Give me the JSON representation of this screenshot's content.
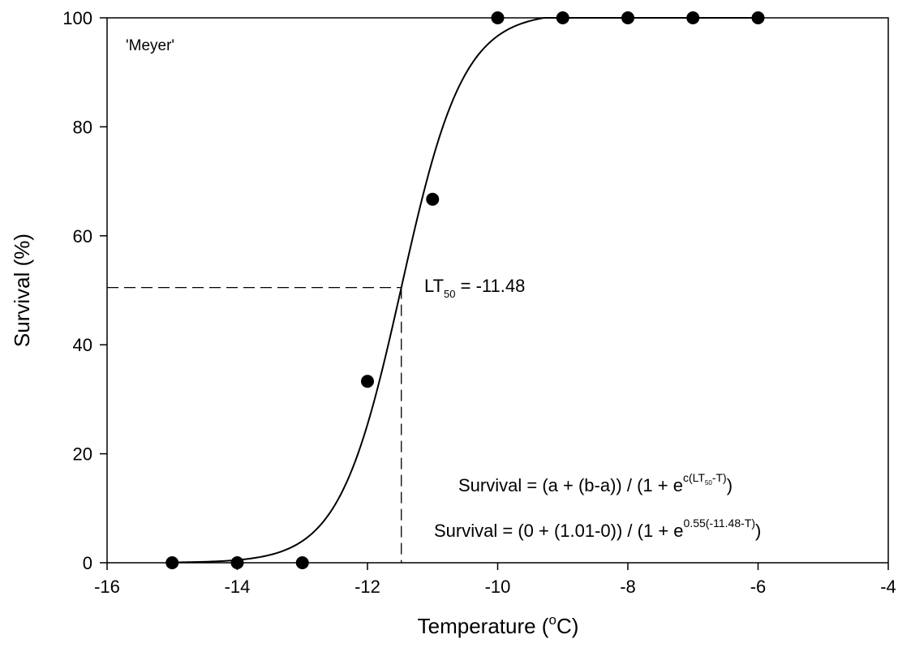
{
  "chart_data": {
    "type": "scatter",
    "panel_label": "'Meyer'",
    "xlabel": {
      "main": "Temperature (",
      "sup": "o",
      "tail": "C)"
    },
    "ylabel": "Survival (%)",
    "xlim": [
      -16,
      -4
    ],
    "ylim": [
      0,
      100
    ],
    "xticks": [
      "-16",
      "-14",
      "-12",
      "-10",
      "-8",
      "-6",
      "-4"
    ],
    "yticks": [
      "0",
      "20",
      "40",
      "60",
      "80",
      "100"
    ],
    "grid": false,
    "points": [
      {
        "x": -15,
        "y": 0
      },
      {
        "x": -14,
        "y": 0
      },
      {
        "x": -13,
        "y": 0
      },
      {
        "x": -12,
        "y": 33.3
      },
      {
        "x": -11,
        "y": 66.7
      },
      {
        "x": -10,
        "y": 100
      },
      {
        "x": -9,
        "y": 100
      },
      {
        "x": -8,
        "y": 100
      },
      {
        "x": -7,
        "y": 100
      },
      {
        "x": -6,
        "y": 100
      }
    ],
    "fit": {
      "a": 0,
      "b": 1.01,
      "c": 0.55,
      "lt50": -11.48
    },
    "lt50_marker": {
      "x": -11.48,
      "y": 50.5
    },
    "lt50_label": {
      "main": "LT",
      "sub": "50",
      "tail": " = -11.48"
    },
    "equation_general": {
      "pre": "Survival = (a + (b-a)) / (1 + e",
      "sup1": "c(LT",
      "supsub": "50",
      "sup2": "-T)",
      "post": ")"
    },
    "equation_fitted": {
      "pre": "Survival = (0 + (1.01-0)) / (1 + e",
      "sup": "0.55(-11.48-T)",
      "post": ")"
    }
  }
}
